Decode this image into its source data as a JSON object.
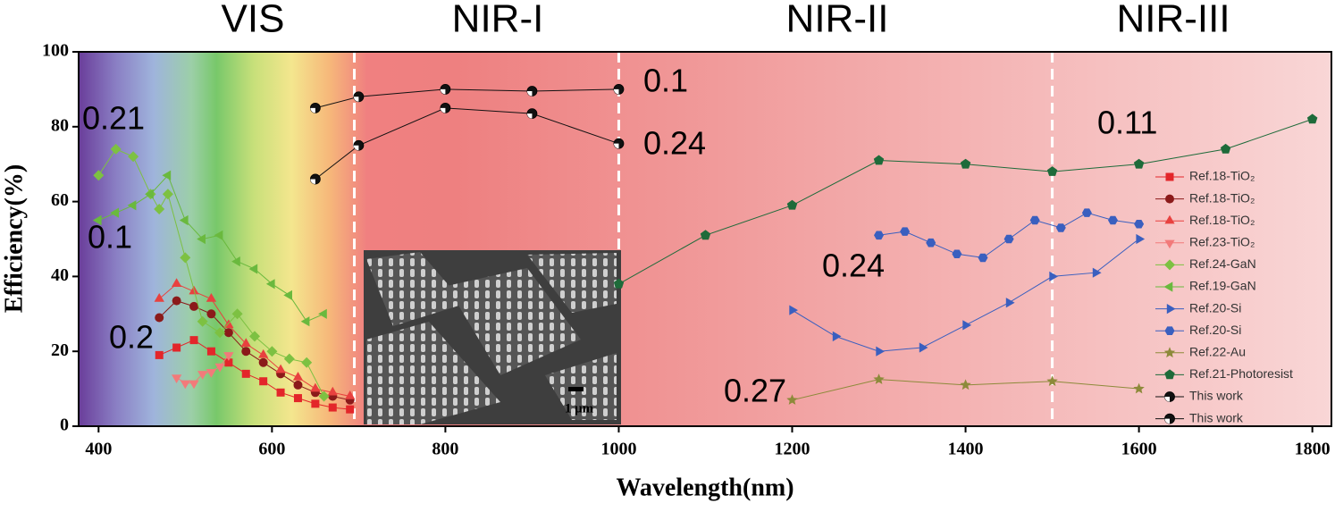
{
  "chart_data": {
    "type": "line",
    "region_labels": [
      "VIS",
      "NIR-I",
      "NIR-II",
      "NIR-III"
    ],
    "dividers": [
      695,
      1000,
      1500
    ],
    "x_label": "Wavelength(nm)",
    "y_label": "Efficiency(%)",
    "xlim": [
      377,
      1822
    ],
    "ylim": [
      0,
      100
    ],
    "xticks": [
      400,
      600,
      800,
      1000,
      1200,
      1400,
      1600,
      1800
    ],
    "yticks": [
      0,
      20,
      40,
      60,
      80,
      100
    ],
    "annotations": [
      "0.21",
      "0.1",
      "0.2",
      "0.1",
      "0.24",
      "0.24",
      "0.27",
      "0.11"
    ],
    "inset_scale_label": "1 μm",
    "series": [
      {
        "name": "Ref.18-TiO₂",
        "color": "#e3262a",
        "marker": "square",
        "x": [
          470,
          490,
          510,
          530,
          550,
          570,
          590,
          610,
          630,
          650,
          670,
          690
        ],
        "values": [
          19,
          21,
          23,
          20,
          17,
          14,
          12,
          9,
          7.5,
          6,
          5,
          4.5
        ]
      },
      {
        "name": "Ref.18-TiO₂",
        "color": "#8b1a1a",
        "marker": "circle",
        "x": [
          470,
          490,
          510,
          530,
          550,
          570,
          590,
          610,
          630,
          650,
          670,
          690
        ],
        "values": [
          29,
          33.5,
          32,
          30,
          25,
          20,
          17,
          14,
          11,
          9,
          8,
          7
        ]
      },
      {
        "name": "Ref.18-TiO₂",
        "color": "#e8413f",
        "marker": "triangle-up",
        "x": [
          470,
          490,
          510,
          530,
          550,
          570,
          590,
          610,
          630,
          650,
          670,
          690
        ],
        "values": [
          34,
          38,
          36,
          34,
          27,
          22,
          19,
          15,
          13,
          10,
          9,
          8
        ]
      },
      {
        "name": "Ref.23-TiO₂",
        "color": "#f27a7a",
        "marker": "triangle-down",
        "x": [
          490,
          500,
          510,
          520,
          530,
          540,
          550
        ],
        "values": [
          13,
          11.5,
          11.5,
          14,
          14.5,
          16,
          19
        ]
      },
      {
        "name": "Ref.24-GaN",
        "color": "#7dc142",
        "marker": "diamond",
        "x": [
          400,
          420,
          440,
          460,
          470,
          480,
          500,
          520,
          540,
          560,
          580,
          600,
          620,
          640,
          660
        ],
        "values": [
          67,
          74,
          72,
          62,
          58,
          62,
          45,
          28,
          25,
          30,
          24,
          20,
          18,
          17,
          8
        ]
      },
      {
        "name": "Ref.19-GaN",
        "color": "#6ab93e",
        "marker": "triangle-left",
        "x": [
          400,
          420,
          440,
          460,
          480,
          500,
          520,
          540,
          560,
          580,
          600,
          620,
          640,
          660
        ],
        "values": [
          55,
          57,
          59,
          62,
          67,
          55,
          50,
          51,
          44,
          42,
          38,
          35,
          28,
          30
        ]
      },
      {
        "name": "Ref.20-Si",
        "color": "#3a5fbf",
        "marker": "triangle-right",
        "x": [
          1200,
          1250,
          1300,
          1350,
          1400,
          1450,
          1500,
          1550,
          1600
        ],
        "values": [
          31,
          24,
          20,
          21,
          27,
          33,
          40,
          41,
          50
        ]
      },
      {
        "name": "Ref.20-Si",
        "color": "#3a5fbf",
        "marker": "hexagon",
        "x": [
          1300,
          1330,
          1360,
          1390,
          1420,
          1450,
          1480,
          1510,
          1540,
          1570,
          1600
        ],
        "values": [
          51,
          52,
          49,
          46,
          45,
          50,
          55,
          53,
          57,
          55,
          54
        ]
      },
      {
        "name": "Ref.22-Au",
        "color": "#8d8a3a",
        "marker": "star",
        "x": [
          1200,
          1300,
          1400,
          1500,
          1600
        ],
        "values": [
          7,
          12.5,
          11,
          12,
          10
        ]
      },
      {
        "name": "Ref.21-Photoresist",
        "color": "#1e6b3a",
        "marker": "pentagon",
        "x": [
          1000,
          1100,
          1200,
          1300,
          1400,
          1500,
          1600,
          1700,
          1800
        ],
        "values": [
          38,
          51,
          59,
          71,
          70,
          68,
          70,
          74,
          82
        ]
      },
      {
        "name": "This work",
        "color": "#111111",
        "marker": "ball",
        "x": [
          650,
          700,
          800,
          900,
          1000
        ],
        "values": [
          85,
          88,
          90,
          89.5,
          90
        ]
      },
      {
        "name": "This work",
        "color": "#111111",
        "marker": "ball",
        "x": [
          650,
          700,
          800,
          900,
          1000
        ],
        "values": [
          66,
          75,
          85,
          83.5,
          75.5
        ]
      }
    ]
  }
}
